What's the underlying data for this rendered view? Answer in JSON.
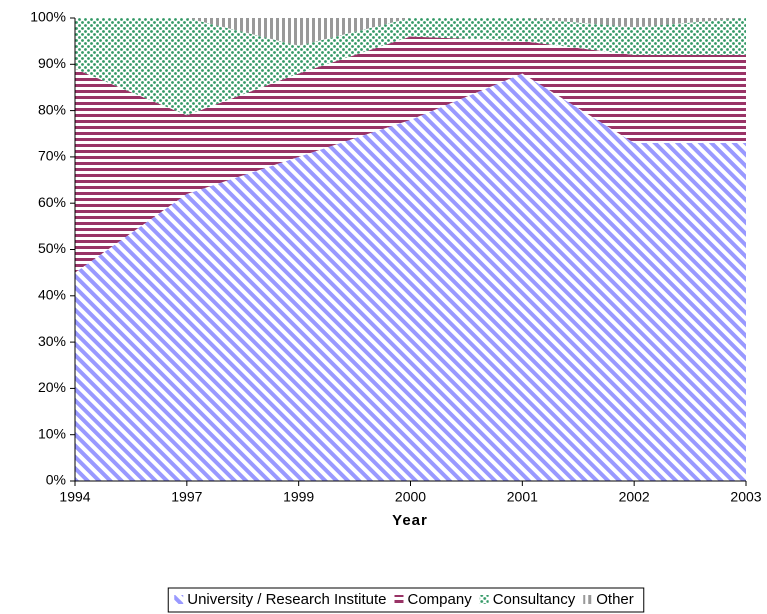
{
  "chart_data": {
    "type": "stacked_area",
    "xlabel": "Year",
    "categories": [
      "1994",
      "1997",
      "1999",
      "2000",
      "2001",
      "2002",
      "2003"
    ],
    "series": [
      {
        "name": "University / Research Institute",
        "color": "#9999ff",
        "values": [
          45,
          62,
          70,
          78,
          88,
          73,
          73
        ]
      },
      {
        "name": "Company",
        "color": "#993366",
        "values": [
          44,
          17,
          18,
          18,
          7,
          19,
          19
        ]
      },
      {
        "name": "Consultancy",
        "color": "#339966",
        "values": [
          11,
          21,
          6,
          4,
          5,
          6,
          8
        ]
      },
      {
        "name": "Other",
        "color": "#999999",
        "values": [
          0,
          0,
          6,
          0,
          0,
          2,
          0
        ]
      }
    ],
    "ylim": [
      0,
      100
    ],
    "yticks": [
      {
        "value": 0,
        "label": "0%"
      },
      {
        "value": 10,
        "label": "10%"
      },
      {
        "value": 20,
        "label": "20%"
      },
      {
        "value": 30,
        "label": "30%"
      },
      {
        "value": 40,
        "label": "40%"
      },
      {
        "value": 50,
        "label": "50%"
      },
      {
        "value": 60,
        "label": "60%"
      },
      {
        "value": 70,
        "label": "70%"
      },
      {
        "value": 80,
        "label": "80%"
      },
      {
        "value": 90,
        "label": "90%"
      },
      {
        "value": 100,
        "label": "100%"
      }
    ],
    "grid": false,
    "legend": "bottom"
  }
}
